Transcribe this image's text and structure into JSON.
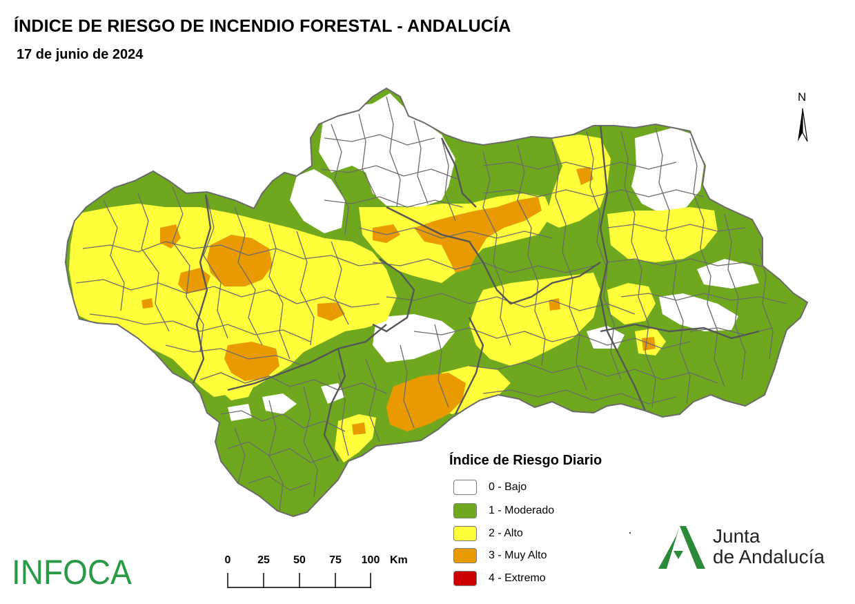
{
  "header": {
    "title": "ÍNDICE DE RIESGO DE INCENDIO FORESTAL - ANDALUCÍA",
    "date": "17 de junio de 2024"
  },
  "north_arrow": {
    "label": "N",
    "icon": "north-arrow-icon"
  },
  "legend": {
    "title": "Índice de Riesgo Diario",
    "items": [
      {
        "label": "0 - Bajo",
        "color": "#ffffff"
      },
      {
        "label": "1 - Moderado",
        "color": "#6fa81e"
      },
      {
        "label": "2 - Alto",
        "color": "#ffff3c"
      },
      {
        "label": "3 - Muy Alto",
        "color": "#e89a00"
      },
      {
        "label": "4 - Extremo",
        "color": "#cc0000"
      }
    ]
  },
  "scale_bar": {
    "ticks": [
      "0",
      "25",
      "50",
      "75",
      "100"
    ],
    "unit": "Km"
  },
  "logos": {
    "infoca": "INFOCA",
    "junta_line1": "Junta",
    "junta_line2": "de Andalucía",
    "infoca_color": "#2a9a46",
    "junta_color": "#2a8a3a"
  },
  "map": {
    "boundary_color": "#666666"
  }
}
